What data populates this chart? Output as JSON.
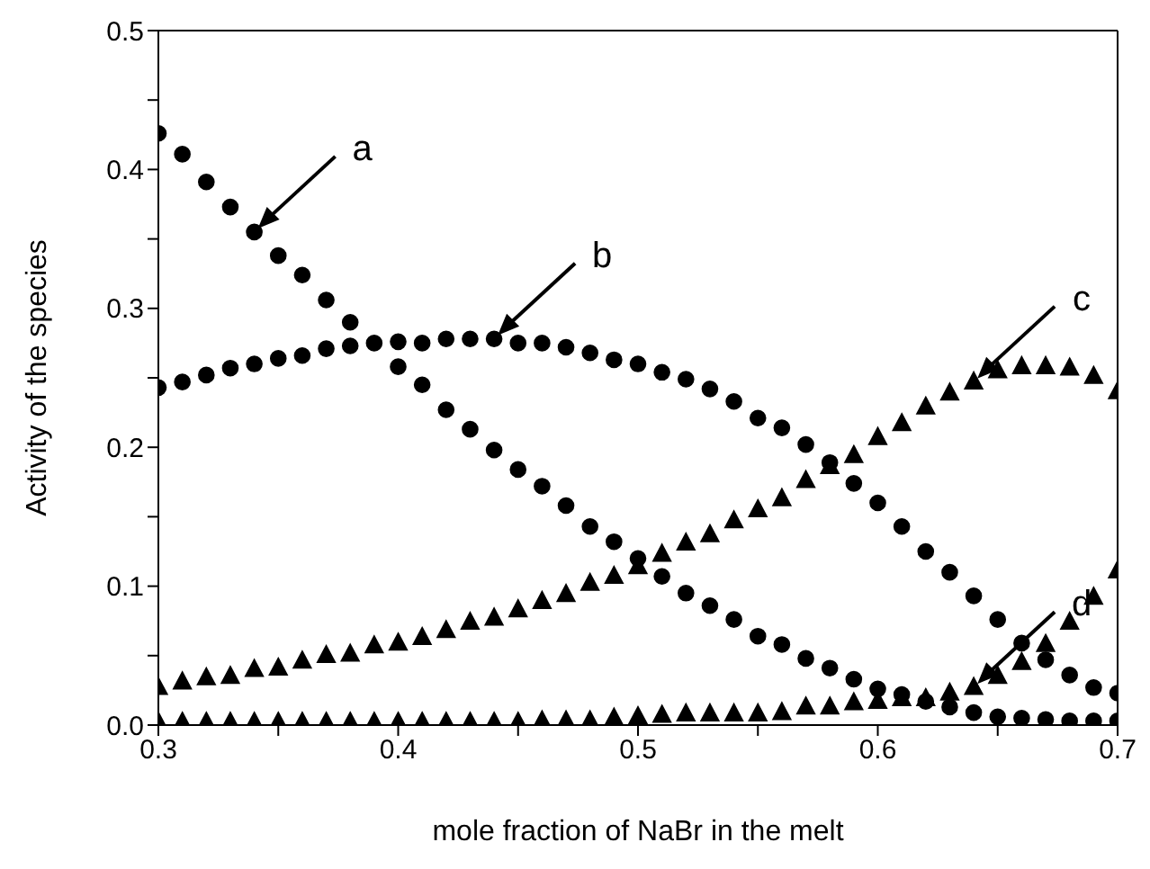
{
  "chart_data": {
    "type": "scatter",
    "xlabel": "mole fraction of NaBr in the melt",
    "ylabel": "Activity of the species",
    "x": [
      0.3,
      0.31,
      0.32,
      0.33,
      0.34,
      0.35,
      0.36,
      0.37,
      0.38,
      0.39,
      0.4,
      0.41,
      0.42,
      0.43,
      0.44,
      0.45,
      0.46,
      0.47,
      0.48,
      0.49,
      0.5,
      0.51,
      0.52,
      0.53,
      0.54,
      0.55,
      0.56,
      0.57,
      0.58,
      0.59,
      0.6,
      0.61,
      0.62,
      0.63,
      0.64,
      0.65,
      0.66,
      0.67,
      0.68,
      0.69,
      0.7
    ],
    "series": [
      {
        "color": "#000000",
        "marker": "circle",
        "values": [
          0.426,
          0.411,
          0.391,
          0.373,
          0.355,
          0.338,
          0.324,
          0.306,
          0.29,
          null,
          0.258,
          0.245,
          0.227,
          0.213,
          0.198,
          0.184,
          0.172,
          0.158,
          0.143,
          0.132,
          0.12,
          0.107,
          0.095,
          0.086,
          0.076,
          0.064,
          0.058,
          0.048,
          0.041,
          0.033,
          0.026,
          0.022,
          0.017,
          0.013,
          0.009,
          0.006,
          0.005,
          0.004,
          0.003,
          0.003,
          0.003
        ]
      },
      {
        "color": "#000000",
        "marker": "circle",
        "values": [
          0.243,
          0.247,
          0.252,
          0.257,
          0.26,
          0.264,
          0.266,
          0.271,
          0.273,
          0.275,
          0.276,
          0.275,
          0.278,
          0.278,
          0.278,
          0.275,
          0.275,
          0.272,
          0.268,
          0.263,
          0.26,
          0.254,
          0.249,
          0.242,
          0.233,
          0.221,
          0.214,
          0.202,
          0.189,
          0.174,
          0.16,
          0.143,
          0.125,
          0.11,
          0.093,
          0.076,
          0.059,
          0.047,
          0.036,
          0.027,
          0.023
        ]
      },
      {
        "color": "#000000",
        "marker": "triangle",
        "values": [
          0.027,
          0.031,
          0.034,
          0.035,
          0.04,
          0.041,
          0.046,
          0.05,
          0.051,
          0.057,
          0.059,
          0.063,
          0.068,
          0.074,
          0.077,
          0.083,
          0.089,
          0.094,
          0.102,
          0.107,
          0.114,
          0.123,
          0.131,
          0.137,
          0.147,
          0.155,
          0.163,
          0.176,
          0.186,
          0.194,
          0.207,
          0.217,
          0.229,
          0.239,
          0.247,
          0.255,
          0.258,
          0.258,
          0.257,
          0.251,
          0.24
        ]
      },
      {
        "color": "#000000",
        "marker": "triangle",
        "values": [
          0.002,
          0.002,
          0.002,
          0.002,
          0.002,
          0.002,
          0.002,
          0.002,
          0.002,
          0.002,
          0.002,
          0.002,
          0.002,
          0.002,
          0.002,
          0.002,
          0.003,
          0.003,
          0.003,
          0.005,
          0.006,
          0.007,
          0.008,
          0.008,
          0.008,
          0.008,
          0.009,
          0.013,
          0.013,
          0.016,
          0.017,
          0.019,
          0.019,
          0.023,
          0.027,
          0.035,
          0.045,
          0.058,
          0.074,
          0.092,
          0.111
        ]
      }
    ],
    "xlim": [
      0.3,
      0.7
    ],
    "xticks": [
      0.3,
      {
        "value": 0.35,
        "label": null
      },
      0.4,
      {
        "value": 0.45,
        "label": null
      },
      0.5,
      {
        "value": 0.55,
        "label": null
      },
      0.6,
      {
        "value": 0.65,
        "label": null
      },
      0.7
    ],
    "ylim": [
      0,
      0.5
    ],
    "yticks": [
      {
        "value": 0,
        "label": "0.0"
      },
      {
        "value": 0.05,
        "label": null
      },
      0.1,
      {
        "value": 0.15,
        "label": null
      },
      0.2,
      {
        "value": 0.25,
        "label": null
      },
      0.3,
      {
        "value": 0.35,
        "label": null
      },
      0.4,
      {
        "value": 0.45,
        "label": null
      },
      0.5
    ],
    "annotations": [
      {
        "text": "a",
        "x": 0.34,
        "y": 0.355
      },
      {
        "text": "b",
        "x": 0.44,
        "y": 0.278
      },
      {
        "text": "c",
        "x": 0.64,
        "y": 0.247
      },
      {
        "text": "d",
        "x": 0.64,
        "y": 0.027
      }
    ],
    "grid": false,
    "legend": false
  }
}
